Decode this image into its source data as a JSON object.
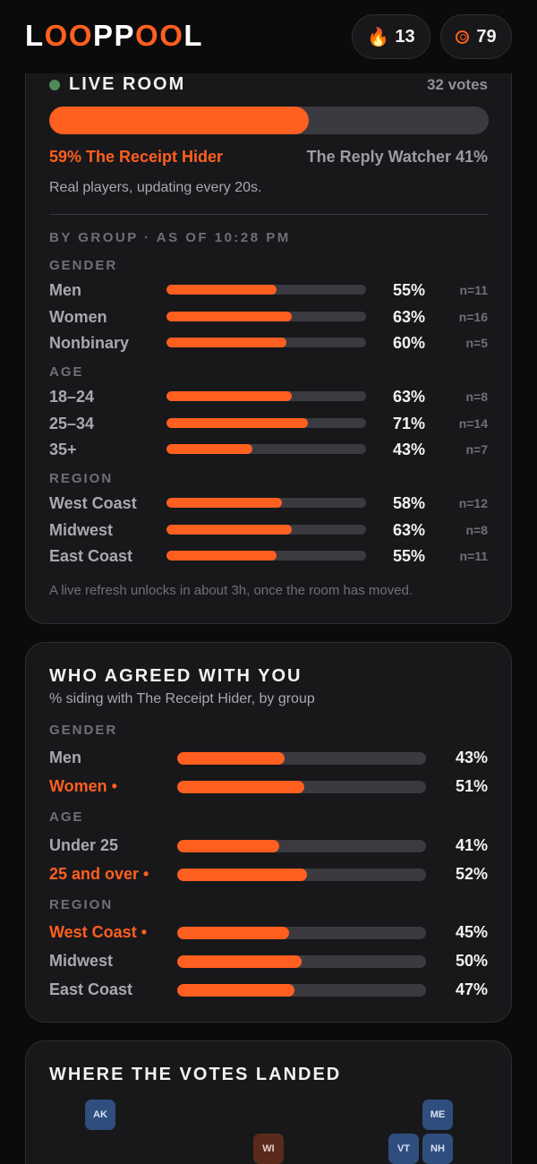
{
  "header": {
    "logo_letters": [
      "L",
      "O",
      "O",
      "P",
      "P",
      "O",
      "O",
      "L"
    ],
    "streak_icon": "flame-icon",
    "streak_value": "13",
    "coins_icon": "target-icon",
    "coins_value": "79"
  },
  "live_room": {
    "title": "LIVE ROOM",
    "votes": "32 votes",
    "split_fraction": 0.59,
    "side_a": "59% The Receipt Hider",
    "side_b": "The Reply Watcher 41%",
    "note": "Real players, updating every 20s.",
    "group_heading": "BY GROUP · AS OF 10:28 PM",
    "sections": [
      {
        "title": "GENDER",
        "rows": [
          {
            "label": "Men",
            "value": 0.55,
            "pct": "55%",
            "n": "n=11"
          },
          {
            "label": "Women",
            "value": 0.63,
            "pct": "63%",
            "n": "n=16"
          },
          {
            "label": "Nonbinary",
            "value": 0.6,
            "pct": "60%",
            "n": "n=5"
          }
        ]
      },
      {
        "title": "AGE",
        "rows": [
          {
            "label": "18–24",
            "value": 0.63,
            "pct": "63%",
            "n": "n=8"
          },
          {
            "label": "25–34",
            "value": 0.71,
            "pct": "71%",
            "n": "n=14"
          },
          {
            "label": "35+",
            "value": 0.43,
            "pct": "43%",
            "n": "n=7"
          }
        ]
      },
      {
        "title": "REGION",
        "rows": [
          {
            "label": "West Coast",
            "value": 0.58,
            "pct": "58%",
            "n": "n=12"
          },
          {
            "label": "Midwest",
            "value": 0.63,
            "pct": "63%",
            "n": "n=8"
          },
          {
            "label": "East Coast",
            "value": 0.55,
            "pct": "55%",
            "n": "n=11"
          }
        ]
      }
    ],
    "footnote": "A live refresh unlocks in about 3h, once the room has moved."
  },
  "agreed": {
    "title": "WHO AGREED WITH YOU",
    "subtitle": "% siding with The Receipt Hider, by group",
    "sections": [
      {
        "title": "GENDER",
        "rows": [
          {
            "label": "Men",
            "value": 0.43,
            "pct": "43%",
            "highlight": false
          },
          {
            "label": "Women •",
            "value": 0.51,
            "pct": "51%",
            "highlight": true
          }
        ]
      },
      {
        "title": "AGE",
        "rows": [
          {
            "label": "Under 25",
            "value": 0.41,
            "pct": "41%",
            "highlight": false
          },
          {
            "label": "25 and over •",
            "value": 0.52,
            "pct": "52%",
            "highlight": true
          }
        ]
      },
      {
        "title": "REGION",
        "rows": [
          {
            "label": "West Coast •",
            "value": 0.45,
            "pct": "45%",
            "highlight": true
          },
          {
            "label": "Midwest",
            "value": 0.5,
            "pct": "50%",
            "highlight": false
          },
          {
            "label": "East Coast",
            "value": 0.47,
            "pct": "47%",
            "highlight": false
          }
        ]
      }
    ]
  },
  "map": {
    "title": "WHERE THE VOTES LANDED",
    "colors": {
      "voted": "#2f4e7d",
      "leaning_other": "#5a2a1c"
    },
    "tiles": [
      {
        "state": "AK",
        "style": "voted"
      },
      {
        "state": "ME",
        "style": "voted"
      },
      {
        "state": "WI",
        "style": "leaning_other"
      },
      {
        "state": "VT",
        "style": "voted"
      },
      {
        "state": "NH",
        "style": "voted"
      }
    ]
  }
}
